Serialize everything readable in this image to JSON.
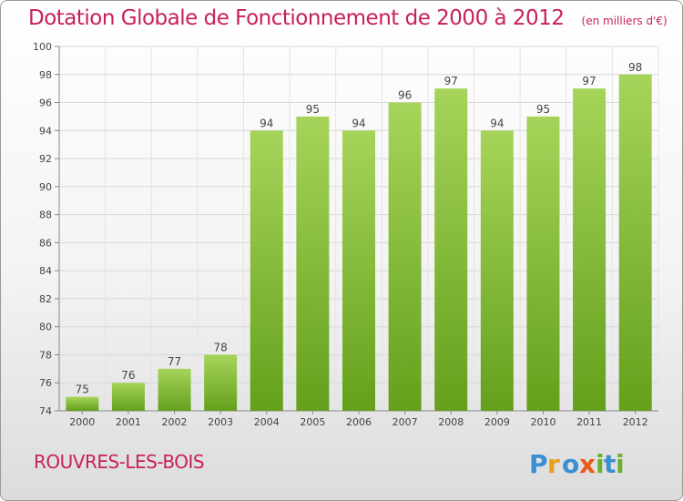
{
  "header": {
    "title": "Dotation Globale de Fonctionnement de 2000 à 2012",
    "subtitle": "(en milliers d'€)"
  },
  "footer": {
    "commune": "ROUVRES-LES-BOIS",
    "logo_text": "Proxiti"
  },
  "colors": {
    "title": "#c8205a",
    "bar_light": "#a6d45a",
    "bar_dark": "#64a01c",
    "grid": "#d8d8d8"
  },
  "chart_data": {
    "type": "bar",
    "title": "Dotation Globale de Fonctionnement de 2000 à 2012",
    "subtitle": "(en milliers d'€)",
    "categories": [
      "2000",
      "2001",
      "2002",
      "2003",
      "2004",
      "2005",
      "2006",
      "2007",
      "2008",
      "2009",
      "2010",
      "2011",
      "2012"
    ],
    "values": [
      75,
      76,
      77,
      78,
      94,
      95,
      94,
      96,
      97,
      94,
      95,
      97,
      98
    ],
    "ylim": [
      74,
      100
    ],
    "yticks": [
      74,
      76,
      78,
      80,
      82,
      84,
      86,
      88,
      90,
      92,
      94,
      96,
      98,
      100
    ],
    "xlabel": "",
    "ylabel": "",
    "grid": true,
    "data_labels": true
  }
}
